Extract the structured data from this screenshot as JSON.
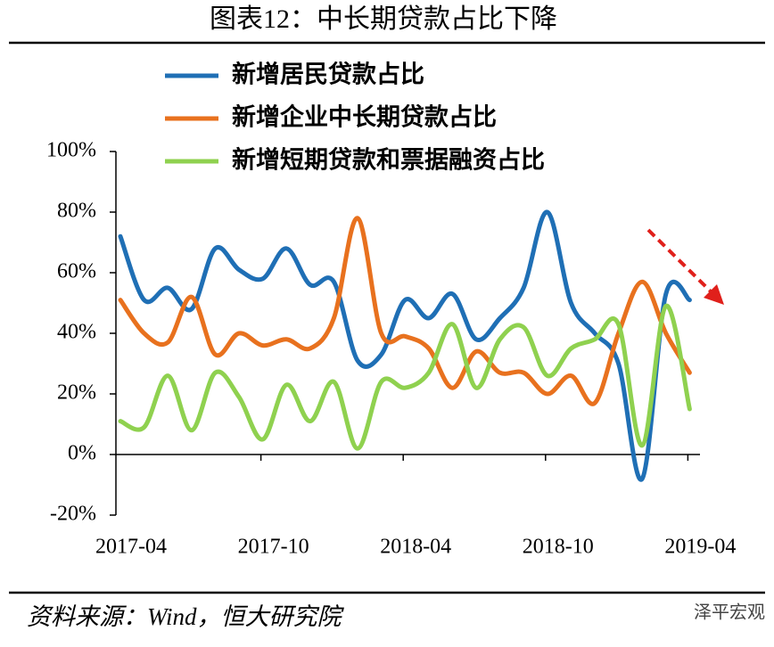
{
  "chart_data": {
    "type": "line",
    "title": "图表12：中长期贷款占比下降",
    "source": "资料来源：Wind，恒大研究院",
    "watermark": "泽平宏观",
    "categories": [
      "2017-04",
      null,
      null,
      null,
      null,
      null,
      "2017-10",
      null,
      null,
      null,
      null,
      null,
      "2018-04",
      null,
      null,
      null,
      null,
      null,
      "2018-10",
      null,
      null,
      null,
      null,
      null,
      "2019-04"
    ],
    "series": [
      {
        "name": "新增居民贷款占比",
        "color": "#1f6fb5",
        "values": [
          72,
          51,
          55,
          48,
          68,
          61,
          58,
          68,
          56,
          57,
          31,
          33,
          51,
          45,
          53,
          38,
          45,
          55,
          80,
          50,
          40,
          30,
          -8,
          53,
          51
        ]
      },
      {
        "name": "新增企业中长期贷款占比",
        "color": "#e8711e",
        "values": [
          51,
          40,
          37,
          52,
          33,
          40,
          36,
          38,
          35,
          45,
          78,
          40,
          39,
          35,
          22,
          34,
          27,
          27,
          20,
          26,
          17,
          40,
          57,
          40,
          27
        ]
      },
      {
        "name": "新增短期贷款和票据融资占比",
        "color": "#8fd14f",
        "values": [
          11,
          9,
          26,
          8,
          27,
          19,
          5,
          23,
          11,
          24,
          2,
          24,
          22,
          27,
          43,
          22,
          38,
          42,
          26,
          35,
          38,
          43,
          3,
          49,
          15
        ]
      }
    ],
    "ylim": [
      -20,
      100
    ],
    "yticks": [
      {
        "value": -20,
        "label": "-20%"
      },
      {
        "value": 0,
        "label": "0%"
      },
      {
        "value": 20,
        "label": "20%"
      },
      {
        "value": 40,
        "label": "40%"
      },
      {
        "value": 60,
        "label": "60%"
      },
      {
        "value": 80,
        "label": "80%"
      },
      {
        "value": 100,
        "label": "100%"
      }
    ],
    "grid": false
  }
}
